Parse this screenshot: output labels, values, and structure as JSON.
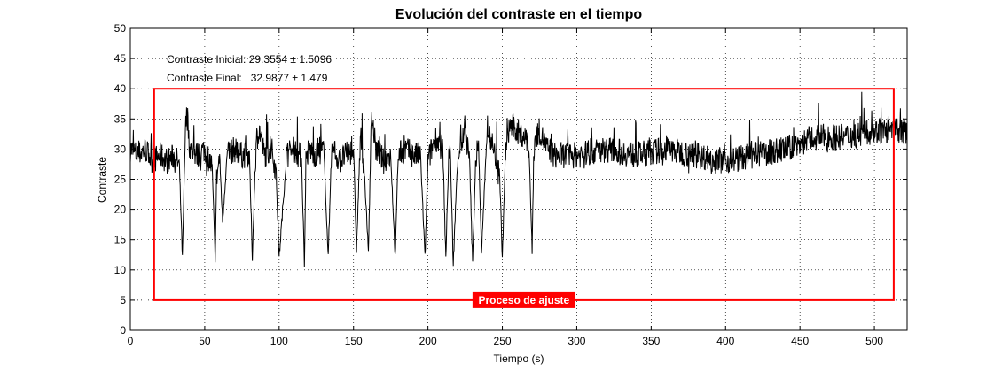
{
  "chart_data": {
    "type": "line",
    "title": "Evolución del contraste en el tiempo",
    "xlabel": "Tiempo (s)",
    "ylabel": "Contraste",
    "xlim": [
      0,
      522
    ],
    "ylim": [
      0,
      50
    ],
    "x_ticks": [
      0,
      50,
      100,
      150,
      200,
      250,
      300,
      350,
      400,
      450,
      500
    ],
    "y_ticks": [
      0,
      5,
      10,
      15,
      20,
      25,
      30,
      35,
      40,
      45,
      50
    ],
    "grid": true,
    "series": [
      {
        "color": "#000000",
        "x": [
          0,
          5,
          10,
          15,
          20,
          25,
          30,
          33,
          35,
          37,
          38,
          40,
          45,
          50,
          55,
          57,
          58,
          60,
          62,
          65,
          70,
          75,
          80,
          82,
          84,
          85,
          87,
          90,
          95,
          98,
          100,
          105,
          110,
          113,
          115,
          117,
          118,
          120,
          125,
          130,
          133,
          135,
          137,
          140,
          145,
          150,
          152,
          154,
          155,
          157,
          160,
          162,
          165,
          168,
          170,
          175,
          178,
          180,
          185,
          190,
          195,
          198,
          200,
          205,
          210,
          212,
          214,
          215,
          217,
          220,
          225,
          228,
          230,
          232,
          234,
          236,
          240,
          245,
          248,
          250,
          252,
          255,
          260,
          265,
          268,
          270,
          271,
          272,
          275,
          280,
          285,
          290,
          300,
          320,
          340,
          360,
          380,
          400,
          420,
          440,
          450,
          460,
          480,
          500,
          510,
          522
        ],
        "y": [
          30,
          29,
          30,
          28,
          29,
          28,
          29,
          27,
          12,
          33,
          36,
          30,
          29,
          30,
          27,
          12,
          25,
          29,
          18,
          29,
          30,
          29,
          29,
          12,
          28,
          32,
          33,
          29,
          30,
          26,
          12,
          29,
          30,
          29,
          29,
          11,
          28,
          30,
          29,
          30,
          12,
          29,
          30,
          28,
          29,
          30,
          13,
          28,
          32,
          27,
          13,
          36,
          30,
          29,
          28,
          29,
          12,
          29,
          30,
          29,
          29,
          12,
          28,
          32,
          30,
          12,
          29,
          30,
          11,
          29,
          33,
          28,
          11,
          28,
          31,
          13,
          34,
          29,
          27,
          12,
          29,
          34,
          33,
          32,
          30,
          13,
          28,
          32,
          33,
          30,
          29,
          29,
          29,
          30,
          29,
          30,
          29,
          28,
          29,
          30,
          31,
          32,
          32,
          33,
          33,
          33
        ]
      }
    ],
    "annotations": [
      {
        "text": "Contraste Inicial: 29.3554 ± 1.5096"
      },
      {
        "text": "Contraste Final:   32.9877 ± 1.479"
      }
    ],
    "region": {
      "x": [
        16,
        513
      ],
      "y": [
        5,
        40
      ],
      "color": "#ff0000",
      "label": "Proceso de ajuste"
    }
  }
}
